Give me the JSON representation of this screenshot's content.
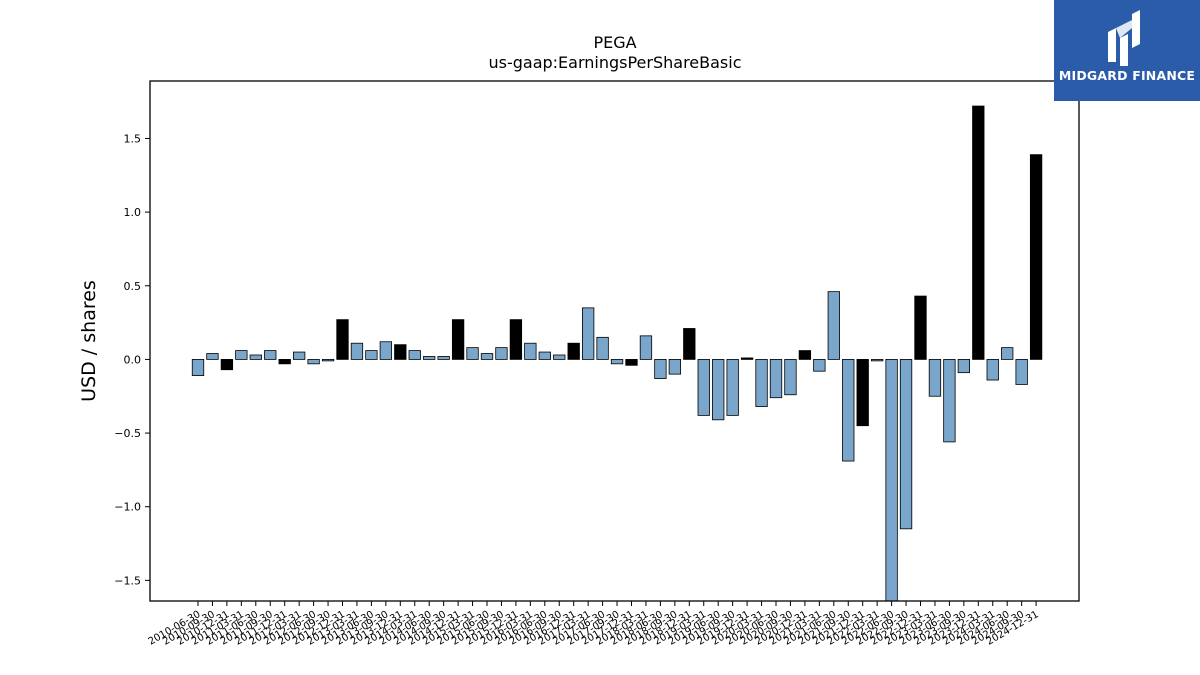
{
  "brand": {
    "name": "MIDGARD FINANCE"
  },
  "chart_data": {
    "type": "bar",
    "title": "PEGA",
    "subtitle": "us-gaap:EarningsPerShareBasic",
    "xlabel": "",
    "ylabel": "USD / shares",
    "ylim": [
      -1.64,
      1.89
    ],
    "yticks": [
      -1.5,
      -1.0,
      -0.5,
      0.0,
      0.5,
      1.0,
      1.5
    ],
    "ytick_labels": [
      "−1.5",
      "−1.0",
      "−0.5",
      "0.0",
      "0.5",
      "1.0",
      "1.5"
    ],
    "colors": {
      "quarterly": "#7aa6cc",
      "annual": "#000000",
      "edge": "#000000"
    },
    "categories": [
      "2010-06-30",
      "2010-09-30",
      "2010-12-31",
      "2011-03-31",
      "2011-06-30",
      "2011-09-30",
      "2011-12-31",
      "2012-03-31",
      "2012-06-30",
      "2012-09-30",
      "2012-12-31",
      "2013-03-31",
      "2013-06-30",
      "2013-09-30",
      "2013-12-31",
      "2014-03-31",
      "2014-06-30",
      "2014-09-30",
      "2014-12-31",
      "2015-03-31",
      "2015-06-30",
      "2015-09-30",
      "2015-12-31",
      "2016-03-31",
      "2016-06-30",
      "2016-09-30",
      "2016-12-31",
      "2017-03-31",
      "2017-06-30",
      "2017-09-30",
      "2017-12-31",
      "2018-03-31",
      "2018-06-30",
      "2018-09-30",
      "2018-12-31",
      "2019-03-31",
      "2019-06-30",
      "2019-09-30",
      "2019-12-31",
      "2020-03-31",
      "2020-06-30",
      "2020-09-30",
      "2020-12-31",
      "2021-03-31",
      "2021-06-30",
      "2021-09-30",
      "2021-12-31",
      "2022-03-31",
      "2022-06-30",
      "2022-09-30",
      "2022-12-31",
      "2023-03-31",
      "2023-06-30",
      "2023-09-30",
      "2023-12-31",
      "2024-03-31",
      "2024-06-30",
      "2024-09-30",
      "2024-12-31"
    ],
    "series": [
      {
        "values": [
          -0.11,
          0.04,
          -0.07,
          0.06,
          0.03,
          0.06,
          -0.03,
          0.05,
          -0.03,
          -0.01,
          0.27,
          0.11,
          0.06,
          0.12,
          0.1,
          0.06,
          0.02,
          0.02,
          0.27,
          0.08,
          0.04,
          0.08,
          0.27,
          0.11,
          0.05,
          0.03,
          0.11,
          0.35,
          0.15,
          -0.03,
          -0.04,
          0.16,
          -0.13,
          -0.1,
          0.21,
          -0.38,
          -0.41,
          -0.38,
          0.01,
          -0.32,
          -0.26,
          -0.24,
          0.06,
          -0.08,
          0.46,
          -0.69,
          -0.45,
          -0.01,
          -1.64,
          -1.15,
          0.43,
          -0.25,
          -0.56,
          -0.09,
          1.72,
          -0.14,
          0.08,
          -0.17,
          1.39
        ],
        "annual": [
          false,
          false,
          true,
          false,
          false,
          false,
          true,
          false,
          false,
          false,
          true,
          false,
          false,
          false,
          true,
          false,
          false,
          false,
          true,
          false,
          false,
          false,
          true,
          false,
          false,
          false,
          true,
          false,
          false,
          false,
          true,
          false,
          false,
          false,
          true,
          false,
          false,
          false,
          true,
          false,
          false,
          false,
          true,
          false,
          false,
          false,
          true,
          false,
          false,
          false,
          true,
          false,
          false,
          false,
          true,
          false,
          false,
          false,
          true
        ]
      }
    ]
  }
}
